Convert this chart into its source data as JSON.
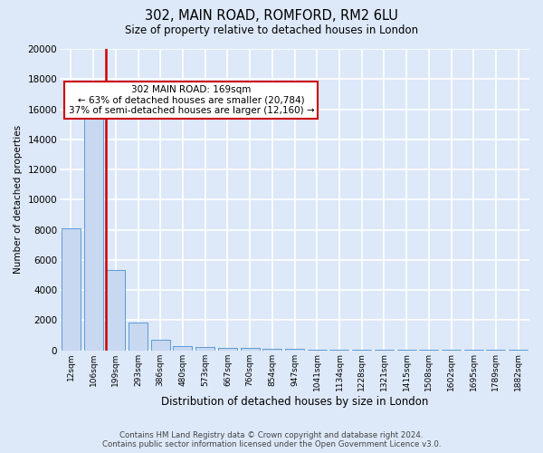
{
  "title": "302, MAIN ROAD, ROMFORD, RM2 6LU",
  "subtitle": "Size of property relative to detached houses in London",
  "xlabel": "Distribution of detached houses by size in London",
  "ylabel": "Number of detached properties",
  "categories": [
    "12sqm",
    "106sqm",
    "199sqm",
    "293sqm",
    "386sqm",
    "480sqm",
    "573sqm",
    "667sqm",
    "760sqm",
    "854sqm",
    "947sqm",
    "1041sqm",
    "1134sqm",
    "1228sqm",
    "1321sqm",
    "1415sqm",
    "1508sqm",
    "1602sqm",
    "1695sqm",
    "1789sqm",
    "1882sqm"
  ],
  "values": [
    8100,
    16500,
    5300,
    1850,
    700,
    300,
    200,
    175,
    150,
    100,
    80,
    60,
    50,
    40,
    35,
    30,
    25,
    22,
    18,
    15,
    12
  ],
  "bar_color": "#c8d8f0",
  "bar_edge_color": "#5b9bd5",
  "red_line_x": 1.55,
  "annotation_text": "302 MAIN ROAD: 169sqm\n← 63% of detached houses are smaller (20,784)\n37% of semi-detached houses are larger (12,160) →",
  "annotation_box_color": "#ffffff",
  "annotation_box_edge_color": "#cc0000",
  "red_line_color": "#cc0000",
  "footer_line1": "Contains HM Land Registry data © Crown copyright and database right 2024.",
  "footer_line2": "Contains public sector information licensed under the Open Government Licence v3.0.",
  "background_color": "#dde8f8",
  "plot_bg_color": "#dde8f8",
  "grid_color": "#ffffff",
  "ylim": [
    0,
    20000
  ],
  "yticks": [
    0,
    2000,
    4000,
    6000,
    8000,
    10000,
    12000,
    14000,
    16000,
    18000,
    20000
  ]
}
